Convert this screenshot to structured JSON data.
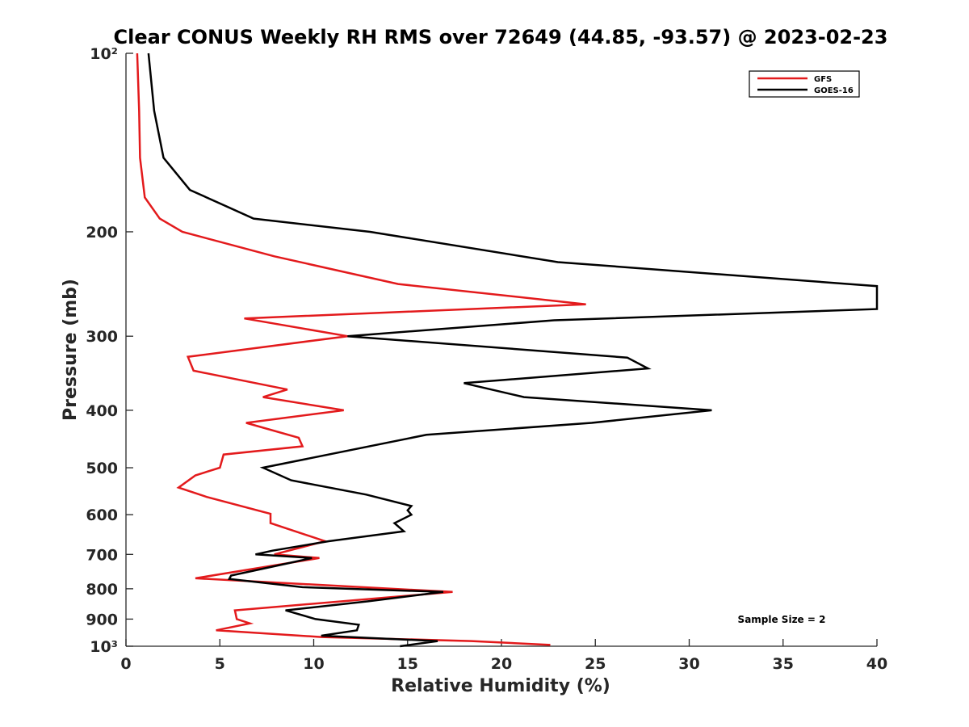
{
  "chart_data": {
    "type": "line",
    "title": "Clear CONUS Weekly RH RMS over 72649 (44.85, -93.57) @ 2023-02-23",
    "xlabel": "Relative Humidity (%)",
    "ylabel": "Pressure (mb)",
    "xlim": [
      0,
      40
    ],
    "ylim": [
      100,
      1000
    ],
    "y_scale": "log",
    "y_reversed": true,
    "x_ticks": [
      0,
      5,
      10,
      15,
      20,
      25,
      30,
      35,
      40
    ],
    "x_tick_labels": [
      "0",
      "5",
      "10",
      "15",
      "20",
      "25",
      "30",
      "35",
      "40"
    ],
    "y_ticks": [
      100,
      200,
      300,
      400,
      500,
      600,
      700,
      800,
      900,
      1000
    ],
    "y_tick_labels": [
      "10²",
      "200",
      "300",
      "400",
      "500",
      "600",
      "700",
      "800",
      "900",
      "10³"
    ],
    "grid": false,
    "legend_position": "top-right",
    "annotation": "Sample Size = 2",
    "series": [
      {
        "name": "GFS",
        "color": "#e31a1c",
        "points": [
          [
            0.6,
            100
          ],
          [
            0.7,
            125
          ],
          [
            0.75,
            150
          ],
          [
            1.0,
            175
          ],
          [
            1.8,
            190
          ],
          [
            3.0,
            200
          ],
          [
            7.9,
            220
          ],
          [
            14.5,
            245
          ],
          [
            24.5,
            265
          ],
          [
            6.3,
            280
          ],
          [
            11.8,
            300
          ],
          [
            3.3,
            325
          ],
          [
            3.6,
            343
          ],
          [
            8.6,
            369
          ],
          [
            7.3,
            380
          ],
          [
            11.6,
            400
          ],
          [
            6.4,
            420
          ],
          [
            9.2,
            445
          ],
          [
            9.4,
            460
          ],
          [
            5.2,
            475
          ],
          [
            5.0,
            500
          ],
          [
            3.7,
            515
          ],
          [
            2.8,
            540
          ],
          [
            4.3,
            560
          ],
          [
            7.7,
            598
          ],
          [
            7.7,
            620
          ],
          [
            10.6,
            665
          ],
          [
            7.9,
            700
          ],
          [
            10.3,
            710
          ],
          [
            3.7,
            768
          ],
          [
            17.4,
            810
          ],
          [
            5.8,
            870
          ],
          [
            5.9,
            900
          ],
          [
            6.6,
            915
          ],
          [
            4.8,
            940
          ],
          [
            10.4,
            965
          ],
          [
            18.4,
            980
          ],
          [
            22.6,
            995
          ]
        ]
      },
      {
        "name": "GOES-16",
        "color": "#000000",
        "points": [
          [
            1.2,
            100
          ],
          [
            1.5,
            125
          ],
          [
            2.0,
            150
          ],
          [
            3.4,
            170
          ],
          [
            6.8,
            190
          ],
          [
            13.0,
            200
          ],
          [
            23.0,
            225
          ],
          [
            38.5,
            245
          ],
          [
            40.0,
            247
          ],
          [
            40.0,
            270
          ],
          [
            22.8,
            282
          ],
          [
            11.8,
            300
          ],
          [
            26.7,
            326
          ],
          [
            27.8,
            340
          ],
          [
            18.0,
            360
          ],
          [
            21.2,
            380
          ],
          [
            31.2,
            400
          ],
          [
            24.8,
            420
          ],
          [
            16.0,
            440
          ],
          [
            7.3,
            500
          ],
          [
            8.8,
            525
          ],
          [
            12.8,
            555
          ],
          [
            15.2,
            580
          ],
          [
            15.0,
            590
          ],
          [
            15.2,
            600
          ],
          [
            14.3,
            620
          ],
          [
            14.8,
            640
          ],
          [
            10.8,
            665
          ],
          [
            7.8,
            690
          ],
          [
            6.9,
            700
          ],
          [
            9.9,
            710
          ],
          [
            8.6,
            725
          ],
          [
            5.6,
            760
          ],
          [
            5.5,
            770
          ],
          [
            9.4,
            795
          ],
          [
            16.9,
            810
          ],
          [
            12.9,
            840
          ],
          [
            8.5,
            870
          ],
          [
            10.1,
            900
          ],
          [
            12.4,
            920
          ],
          [
            12.3,
            940
          ],
          [
            10.4,
            960
          ],
          [
            16.6,
            980
          ],
          [
            14.6,
            1000
          ]
        ]
      }
    ]
  }
}
